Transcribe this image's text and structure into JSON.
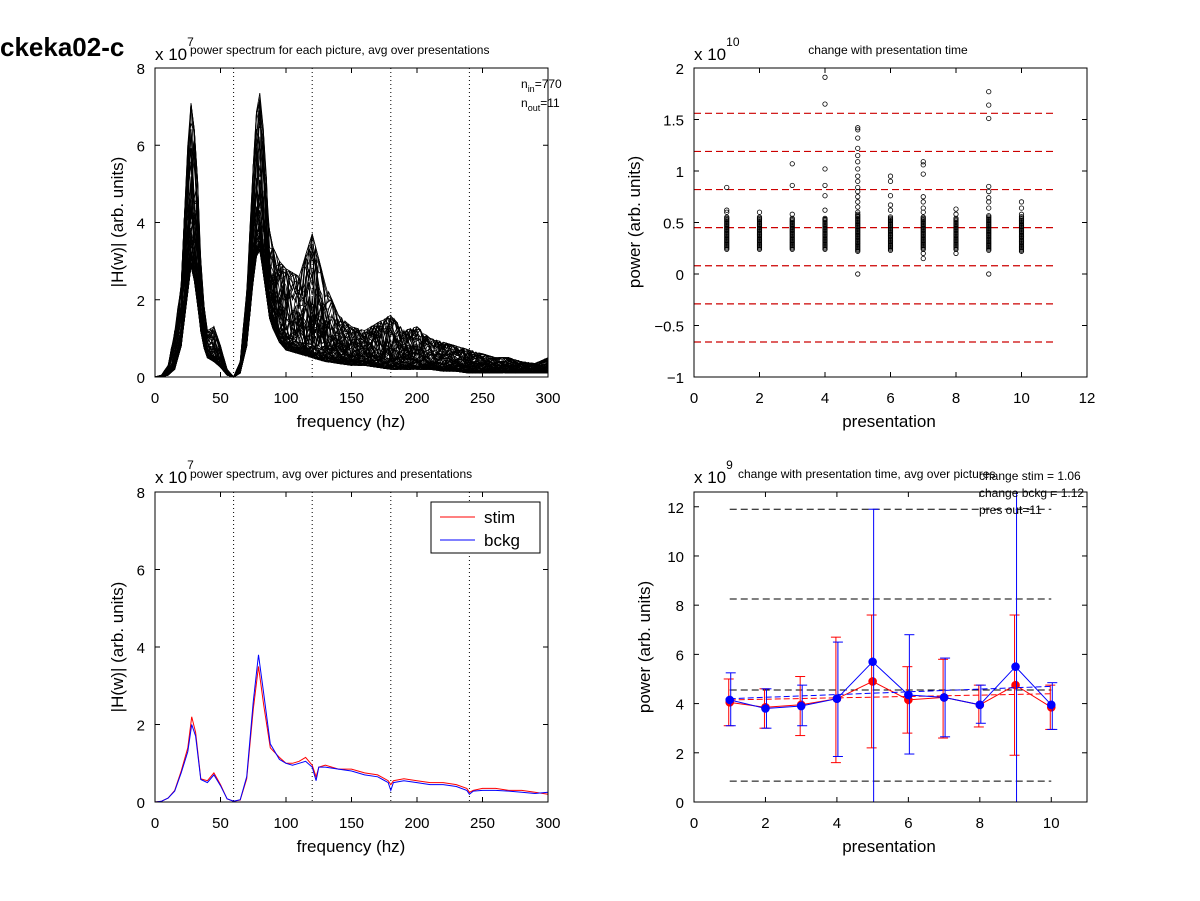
{
  "figure_title": "ckeka02-c",
  "colors": {
    "stim": "#ff0000",
    "bckg": "#0000ff",
    "trace": "#000000",
    "ref_dash": "#cc0000"
  },
  "chart_data": [
    {
      "type": "line",
      "title": "power spectrum for each picture, avg over presentations",
      "xlabel": "frequency (hz)",
      "ylabel": "|H(w)| (arb. units)",
      "exponent_prefix": "x 10",
      "exponent": "7",
      "xlim": [
        0,
        300
      ],
      "ylim": [
        0,
        8
      ],
      "xticks": [
        0,
        50,
        100,
        150,
        200,
        250,
        300
      ],
      "yticks": [
        0,
        2,
        4,
        6,
        8
      ],
      "vlines_dotted": [
        60,
        120,
        180,
        240,
        300
      ],
      "annotations": [
        "n_in=770",
        "n_out=11"
      ],
      "annotation_parts": {
        "in_main": "n",
        "in_sub": "in",
        "in_val": "=770",
        "out_main": "n",
        "out_sub": "out",
        "out_val": "=11"
      },
      "trace_count": 770,
      "envelope": {
        "x": [
          0,
          5,
          10,
          15,
          20,
          25,
          28,
          32,
          36,
          40,
          45,
          50,
          55,
          60,
          65,
          70,
          75,
          79,
          83,
          88,
          95,
          100,
          110,
          120,
          130,
          140,
          150,
          160,
          170,
          180,
          190,
          200,
          210,
          220,
          230,
          240,
          250,
          260,
          270,
          280,
          290,
          300
        ],
        "low": [
          0,
          0,
          0.05,
          0.2,
          0.8,
          2.2,
          3.0,
          2.0,
          0.9,
          0.5,
          0.4,
          0.25,
          0.05,
          0,
          0.1,
          0.8,
          2.5,
          3.5,
          2.6,
          1.4,
          0.9,
          0.7,
          0.6,
          0.5,
          0.4,
          0.35,
          0.3,
          0.3,
          0.25,
          0.2,
          0.2,
          0.2,
          0.2,
          0.15,
          0.15,
          0.1,
          0.1,
          0.1,
          0.1,
          0.1,
          0.1,
          0.1
        ],
        "mid": [
          0,
          0.02,
          0.1,
          0.4,
          1.2,
          3.2,
          4.0,
          2.9,
          1.3,
          0.7,
          0.55,
          0.35,
          0.08,
          0,
          0.2,
          1.3,
          3.3,
          4.2,
          3.3,
          1.9,
          1.2,
          1.0,
          0.95,
          0.9,
          0.8,
          0.7,
          0.6,
          0.55,
          0.5,
          0.5,
          0.5,
          0.45,
          0.4,
          0.4,
          0.35,
          0.3,
          0.3,
          0.25,
          0.25,
          0.2,
          0.2,
          0.25
        ],
        "high": [
          0,
          0.05,
          0.3,
          1.2,
          2.4,
          6.0,
          7.3,
          5.5,
          2.2,
          1.2,
          1.3,
          0.8,
          0.2,
          0,
          0.4,
          2.2,
          5.5,
          7.7,
          6.3,
          3.5,
          3.0,
          2.8,
          2.6,
          3.7,
          2.4,
          1.6,
          1.3,
          1.2,
          1.4,
          1.6,
          1.2,
          1.3,
          1.0,
          0.9,
          0.8,
          0.7,
          0.6,
          0.5,
          0.5,
          0.4,
          0.35,
          0.5
        ]
      }
    },
    {
      "type": "scatter",
      "title": "change with presentation time",
      "xlabel": "presentation",
      "ylabel": "power (arb. units)",
      "exponent_prefix": "x 10",
      "exponent": "10",
      "xlim": [
        0,
        12
      ],
      "ylim": [
        -1,
        2
      ],
      "xticks": [
        0,
        2,
        4,
        6,
        8,
        10,
        12
      ],
      "yticks": [
        -1,
        -0.5,
        0,
        0.5,
        1,
        1.5,
        2
      ],
      "ytick_labels": [
        "−1",
        "−0.5",
        "0",
        "0.5",
        "1",
        "1.5",
        "2"
      ],
      "ref_lines_red_dashed": [
        1.56,
        1.19,
        0.82,
        0.45,
        0.08,
        -0.29,
        -0.66
      ],
      "ref_xrange": [
        0,
        11
      ],
      "dense_band": [
        {
          "x": 1,
          "low": 0.24,
          "high": 0.56
        },
        {
          "x": 2,
          "low": 0.24,
          "high": 0.56
        },
        {
          "x": 3,
          "low": 0.24,
          "high": 0.55
        },
        {
          "x": 4,
          "low": 0.24,
          "high": 0.55
        },
        {
          "x": 5,
          "low": 0.22,
          "high": 0.58
        },
        {
          "x": 6,
          "low": 0.23,
          "high": 0.56
        },
        {
          "x": 7,
          "low": 0.24,
          "high": 0.56
        },
        {
          "x": 8,
          "low": 0.24,
          "high": 0.55
        },
        {
          "x": 9,
          "low": 0.23,
          "high": 0.57
        },
        {
          "x": 10,
          "low": 0.22,
          "high": 0.56
        }
      ],
      "outliers": [
        {
          "x": 1,
          "y": [
            0.84,
            0.62,
            0.6
          ]
        },
        {
          "x": 2,
          "y": [
            0.6
          ]
        },
        {
          "x": 3,
          "y": [
            1.07,
            0.86,
            0.58
          ]
        },
        {
          "x": 4,
          "y": [
            1.91,
            1.65,
            1.02,
            0.86,
            0.76,
            0.62,
            0.53
          ]
        },
        {
          "x": 5,
          "y": [
            1.42,
            1.4,
            1.32,
            1.22,
            1.15,
            1.09,
            1.02,
            0.95,
            0.9,
            0.84,
            0.8,
            0.75,
            0.7,
            0.65,
            0.6,
            0.0
          ]
        },
        {
          "x": 6,
          "y": [
            0.95,
            0.9,
            0.76,
            0.67,
            0.62
          ]
        },
        {
          "x": 7,
          "y": [
            1.09,
            1.06,
            0.97,
            0.75,
            0.7,
            0.64,
            0.6,
            0.2,
            0.15
          ]
        },
        {
          "x": 8,
          "y": [
            0.63,
            0.58,
            0.2
          ]
        },
        {
          "x": 9,
          "y": [
            1.77,
            1.64,
            1.51,
            0.85,
            0.8,
            0.74,
            0.7,
            0.64,
            0.0
          ]
        },
        {
          "x": 10,
          "y": [
            0.7,
            0.64,
            0.58
          ]
        }
      ]
    },
    {
      "type": "line",
      "title": "power spectrum, avg over pictures and presentations",
      "xlabel": "frequency (hz)",
      "ylabel": "|H(w)| (arb. units)",
      "exponent_prefix": "x 10",
      "exponent": "7",
      "xlim": [
        0,
        300
      ],
      "ylim": [
        0,
        8
      ],
      "xticks": [
        0,
        50,
        100,
        150,
        200,
        250,
        300
      ],
      "yticks": [
        0,
        2,
        4,
        6,
        8
      ],
      "vlines_dotted": [
        60,
        120,
        180,
        240,
        300
      ],
      "legend": {
        "position": "top-right",
        "entries": [
          "stim",
          "bckg"
        ]
      },
      "x": [
        0,
        5,
        10,
        15,
        20,
        25,
        28,
        31,
        35,
        40,
        45,
        50,
        55,
        60,
        65,
        70,
        75,
        79,
        83,
        88,
        95,
        100,
        105,
        110,
        115,
        120,
        123,
        125,
        130,
        140,
        150,
        160,
        170,
        178,
        180,
        182,
        190,
        200,
        210,
        220,
        230,
        238,
        240,
        243,
        250,
        260,
        270,
        280,
        290,
        300
      ],
      "series": [
        {
          "name": "stim",
          "values": [
            0,
            0.02,
            0.1,
            0.3,
            0.8,
            1.4,
            2.2,
            1.8,
            0.6,
            0.55,
            0.75,
            0.45,
            0.08,
            0.02,
            0.05,
            0.6,
            2.4,
            3.5,
            2.5,
            1.4,
            1.15,
            1.0,
            1.0,
            1.05,
            1.15,
            0.95,
            0.65,
            0.9,
            0.95,
            0.85,
            0.85,
            0.75,
            0.7,
            0.55,
            0.45,
            0.55,
            0.6,
            0.55,
            0.5,
            0.5,
            0.45,
            0.35,
            0.25,
            0.3,
            0.35,
            0.35,
            0.3,
            0.3,
            0.25,
            0.2
          ]
        },
        {
          "name": "bckg",
          "values": [
            0,
            0.02,
            0.1,
            0.28,
            0.75,
            1.3,
            2.0,
            1.7,
            0.58,
            0.5,
            0.7,
            0.42,
            0.08,
            0.02,
            0.06,
            0.65,
            2.6,
            3.8,
            2.8,
            1.5,
            1.1,
            1.0,
            0.95,
            1.0,
            1.05,
            0.9,
            0.55,
            0.9,
            0.9,
            0.85,
            0.8,
            0.7,
            0.65,
            0.5,
            0.3,
            0.5,
            0.55,
            0.5,
            0.45,
            0.45,
            0.4,
            0.3,
            0.2,
            0.28,
            0.3,
            0.3,
            0.28,
            0.25,
            0.22,
            0.25
          ]
        }
      ]
    },
    {
      "type": "line",
      "title": "change with presentation time, avg over pictures",
      "xlabel": "presentation",
      "ylabel": "power (arb. units)",
      "exponent_prefix": "x 10",
      "exponent": "9",
      "xlim": [
        0,
        11
      ],
      "ylim": [
        0,
        12.6
      ],
      "xticks": [
        0,
        2,
        4,
        6,
        8,
        10
      ],
      "yticks": [
        0,
        2,
        4,
        6,
        8,
        10,
        12
      ],
      "annotations": [
        "change stim = 1.06",
        "change bckg = 1.12",
        "pres out=11"
      ],
      "ref_lines_black_dashed": [
        11.9,
        8.25,
        4.55,
        0.85
      ],
      "ref_xrange": [
        1,
        10
      ],
      "x": [
        1,
        2,
        3,
        4,
        5,
        6,
        7,
        8,
        9,
        10
      ],
      "series": [
        {
          "name": "stim",
          "values": [
            4.05,
            3.85,
            3.95,
            4.2,
            4.9,
            4.15,
            4.25,
            3.95,
            4.75,
            3.85
          ],
          "err_low": [
            3.1,
            3.0,
            2.7,
            1.6,
            2.2,
            2.8,
            2.6,
            3.05,
            1.9,
            2.95
          ],
          "err_high": [
            5.0,
            4.6,
            5.1,
            6.7,
            7.6,
            5.5,
            5.8,
            4.75,
            7.6,
            4.75
          ],
          "fit": [
            4.15,
            4.4
          ]
        },
        {
          "name": "bckg",
          "values": [
            4.15,
            3.8,
            3.9,
            4.2,
            5.7,
            4.35,
            4.25,
            3.95,
            5.5,
            3.95
          ],
          "err_low": [
            3.1,
            3.0,
            3.1,
            1.85,
            0,
            1.95,
            2.65,
            3.2,
            0,
            2.95
          ],
          "err_high": [
            5.25,
            4.6,
            4.75,
            6.5,
            11.9,
            6.8,
            5.85,
            4.75,
            12.6,
            4.85
          ],
          "fit": [
            4.2,
            4.7
          ]
        }
      ]
    }
  ]
}
